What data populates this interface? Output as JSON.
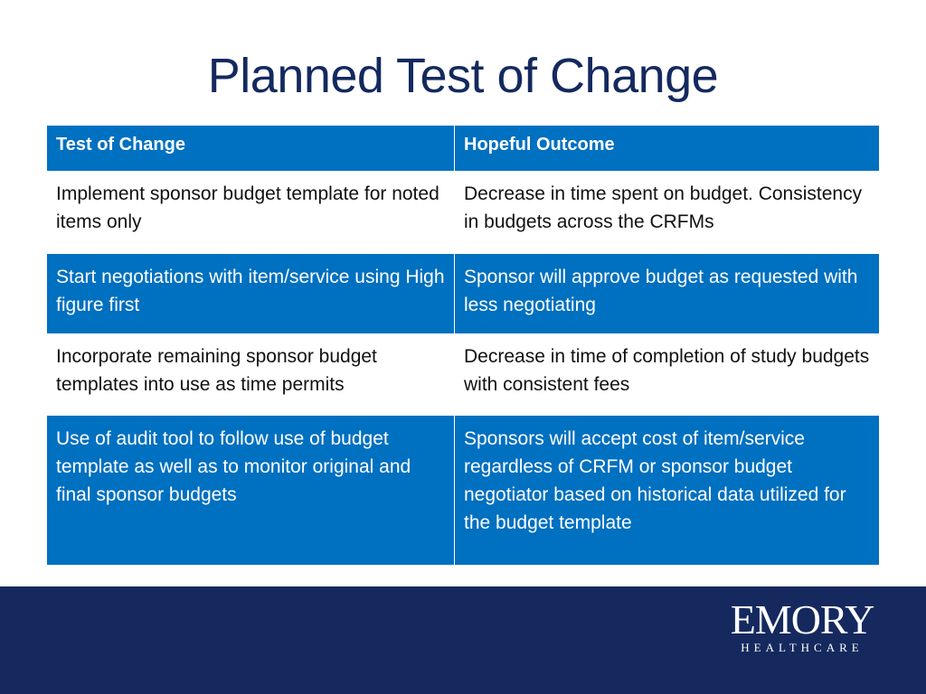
{
  "slide": {
    "title": "Planned Test of Change"
  },
  "table": {
    "headers": [
      "Test of Change",
      "Hopeful Outcome"
    ],
    "rows": [
      {
        "test": "Implement sponsor budget template for noted items only",
        "outcome": "Decrease in time spent on budget. Consistency in budgets across the CRFMs"
      },
      {
        "test": "Start negotiations with item/service using High figure first",
        "outcome": "Sponsor will approve budget as requested with less negotiating"
      },
      {
        "test": "Incorporate remaining sponsor budget templates into use as time permits",
        "outcome": "Decrease in time of completion of study budgets with consistent fees"
      },
      {
        "test": "Use of audit tool to follow use of budget template as well as to monitor original and final sponsor budgets",
        "outcome": "Sponsors will accept cost of item/service regardless of CRFM or sponsor budget negotiator based on historical data utilized for the budget template"
      }
    ]
  },
  "footer": {
    "logo_main": "EMORY",
    "logo_sub": "HEALTHCARE"
  },
  "colors": {
    "title": "#14295e",
    "table_blue": "#0070c0",
    "footer_navy": "#15295e"
  }
}
